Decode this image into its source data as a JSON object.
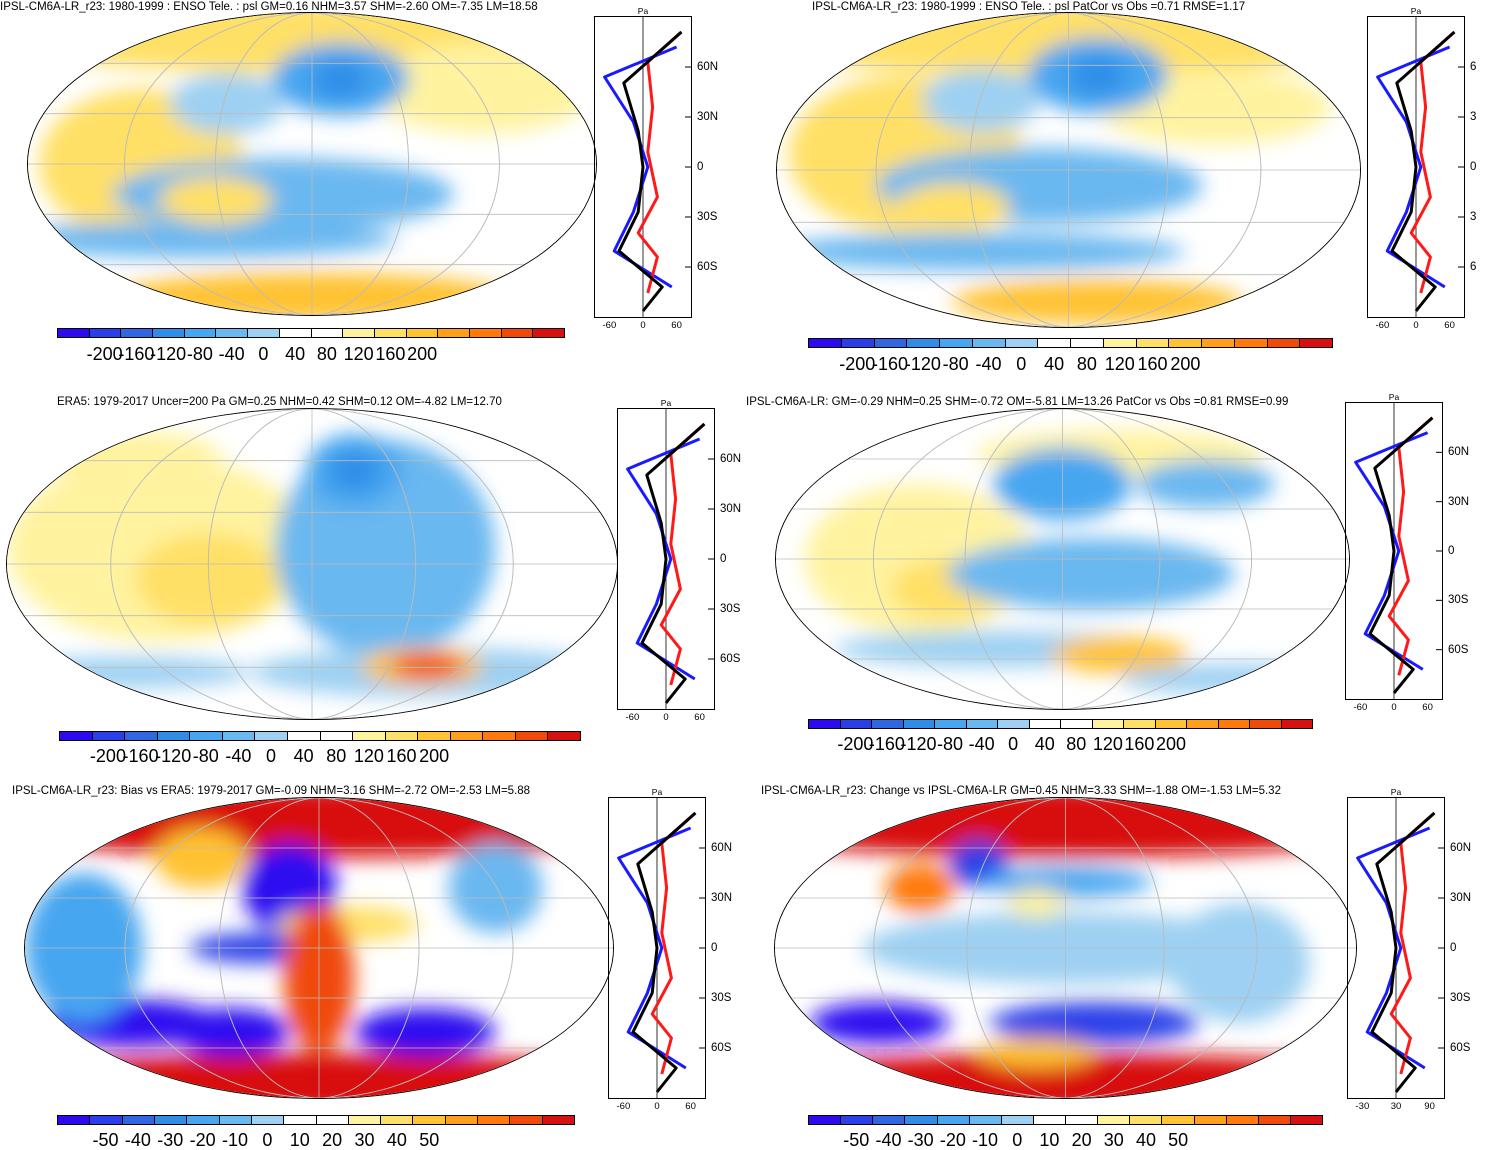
{
  "panels": [
    {
      "id": "p1",
      "title": "IPSL-CM6A-LR_r23: 1980-1999 : ENSO Tele. : psl GM=0.16 NHM=3.57 SHM=-2.60 OM=-7.35 LM=18.58",
      "colorbar_labels": [
        "-200",
        "-160",
        "-120",
        "-80",
        "-40",
        "0",
        "40",
        "80",
        "120",
        "160",
        "200"
      ],
      "zonal_unit": "Pa",
      "zonal_xticks": [
        "-60",
        "0",
        "60"
      ],
      "zonal_yticks": [
        "60N",
        "30N",
        "0",
        "30S",
        "60S"
      ]
    },
    {
      "id": "p2",
      "title": "IPSL-CM6A-LR_r23: 1980-1999 : ENSO Tele. : psl PatCor vs Obs =0.71 RMSE=1.17",
      "colorbar_labels": [
        "-200",
        "-160",
        "-120",
        "-80",
        "-40",
        "0",
        "40",
        "80",
        "120",
        "160",
        "200"
      ],
      "zonal_unit": "Pa",
      "zonal_xticks": [
        "-60",
        "0",
        "60"
      ],
      "zonal_yticks": [
        "6",
        "3",
        "0",
        "3",
        "6"
      ]
    },
    {
      "id": "p3",
      "title": "ERA5: 1979-2017 Uncer=200 Pa GM=0.25 NHM=0.42 SHM=0.12 OM=-4.82 LM=12.70",
      "colorbar_labels": [
        "-200",
        "-160",
        "-120",
        "-80",
        "-40",
        "0",
        "40",
        "80",
        "120",
        "160",
        "200"
      ],
      "zonal_unit": "Pa",
      "zonal_xticks": [
        "-60",
        "0",
        "60"
      ],
      "zonal_yticks": [
        "60N",
        "30N",
        "0",
        "30S",
        "60S"
      ]
    },
    {
      "id": "p4",
      "title": "IPSL-CM6A-LR: GM=-0.29 NHM=0.25 SHM=-0.72 OM=-5.81 LM=13.26 PatCor vs Obs =0.81 RMSE=0.99",
      "colorbar_labels": [
        "-200",
        "-160",
        "-120",
        "-80",
        "-40",
        "0",
        "40",
        "80",
        "120",
        "160",
        "200"
      ],
      "zonal_unit": "Pa",
      "zonal_xticks": [
        "-60",
        "0",
        "60"
      ],
      "zonal_yticks": [
        "60N",
        "30N",
        "0",
        "30S",
        "60S"
      ]
    },
    {
      "id": "p5",
      "title": "IPSL-CM6A-LR_r23: Bias vs ERA5: 1979-2017 GM=-0.09 NHM=3.16 SHM=-2.72 OM=-2.53 LM=5.88",
      "colorbar_labels": [
        "-50",
        "-40",
        "-30",
        "-20",
        "-10",
        "0",
        "10",
        "20",
        "30",
        "40",
        "50"
      ],
      "zonal_unit": "Pa",
      "zonal_xticks": [
        "-60",
        "0",
        "60"
      ],
      "zonal_yticks": [
        "60N",
        "30N",
        "0",
        "30S",
        "60S"
      ]
    },
    {
      "id": "p6",
      "title": "IPSL-CM6A-LR_r23: Change vs IPSL-CM6A-LR GM=0.45 NHM=3.33 SHM=-1.88 OM=-1.53 LM=5.32",
      "colorbar_labels": [
        "-50",
        "-40",
        "-30",
        "-20",
        "-10",
        "0",
        "10",
        "20",
        "30",
        "40",
        "50"
      ],
      "zonal_unit": "Pa",
      "zonal_xticks": [
        "-30",
        "30",
        "90"
      ],
      "zonal_yticks": [
        "60N",
        "30N",
        "0",
        "30S",
        "60S"
      ]
    }
  ],
  "colors": {
    "palette": [
      "#2d0af0",
      "#2a3fe8",
      "#3066e0",
      "#2f8de8",
      "#46a6f0",
      "#6ab8f0",
      "#9dd0f2",
      "#ffffff",
      "#ffffff",
      "#fff3a0",
      "#ffe066",
      "#ffc233",
      "#ff9e1a",
      "#ff7a0a",
      "#f04a0a",
      "#d81010"
    ],
    "line_model": "#ff1a1a",
    "line_obs": "#1a1aff",
    "line_mean": "#000000",
    "grid": "#bbbbbb"
  }
}
